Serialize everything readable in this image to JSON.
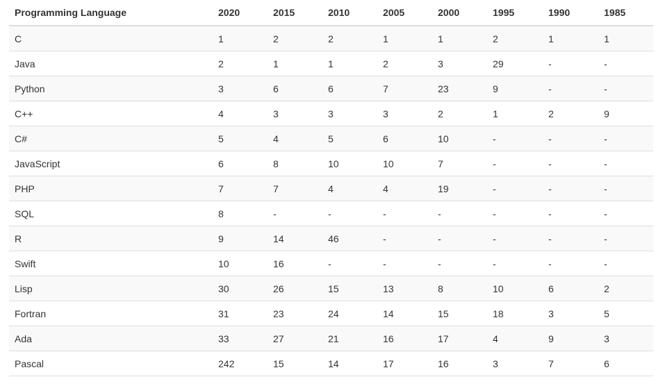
{
  "chart_data": {
    "type": "table",
    "columns": [
      "Programming Language",
      "2020",
      "2015",
      "2010",
      "2005",
      "2000",
      "1995",
      "1990",
      "1985"
    ],
    "rows": [
      [
        "C",
        "1",
        "2",
        "2",
        "1",
        "1",
        "2",
        "1",
        "1"
      ],
      [
        "Java",
        "2",
        "1",
        "1",
        "2",
        "3",
        "29",
        "-",
        "-"
      ],
      [
        "Python",
        "3",
        "6",
        "6",
        "7",
        "23",
        "9",
        "-",
        "-"
      ],
      [
        "C++",
        "4",
        "3",
        "3",
        "3",
        "2",
        "1",
        "2",
        "9"
      ],
      [
        "C#",
        "5",
        "4",
        "5",
        "6",
        "10",
        "-",
        "-",
        "-"
      ],
      [
        "JavaScript",
        "6",
        "8",
        "10",
        "10",
        "7",
        "-",
        "-",
        "-"
      ],
      [
        "PHP",
        "7",
        "7",
        "4",
        "4",
        "19",
        "-",
        "-",
        "-"
      ],
      [
        "SQL",
        "8",
        "-",
        "-",
        "-",
        "-",
        "-",
        "-",
        "-"
      ],
      [
        "R",
        "9",
        "14",
        "46",
        "-",
        "-",
        "-",
        "-",
        "-"
      ],
      [
        "Swift",
        "10",
        "16",
        "-",
        "-",
        "-",
        "-",
        "-",
        "-"
      ],
      [
        "Lisp",
        "30",
        "26",
        "15",
        "13",
        "8",
        "10",
        "6",
        "2"
      ],
      [
        "Fortran",
        "31",
        "23",
        "24",
        "14",
        "15",
        "18",
        "3",
        "5"
      ],
      [
        "Ada",
        "33",
        "27",
        "21",
        "16",
        "17",
        "4",
        "9",
        "3"
      ],
      [
        "Pascal",
        "242",
        "15",
        "14",
        "17",
        "16",
        "3",
        "7",
        "6"
      ]
    ]
  },
  "colors": {
    "text": "#333333",
    "border": "#dddddd",
    "stripe": "#f9f9f9",
    "background": "#ffffff"
  }
}
